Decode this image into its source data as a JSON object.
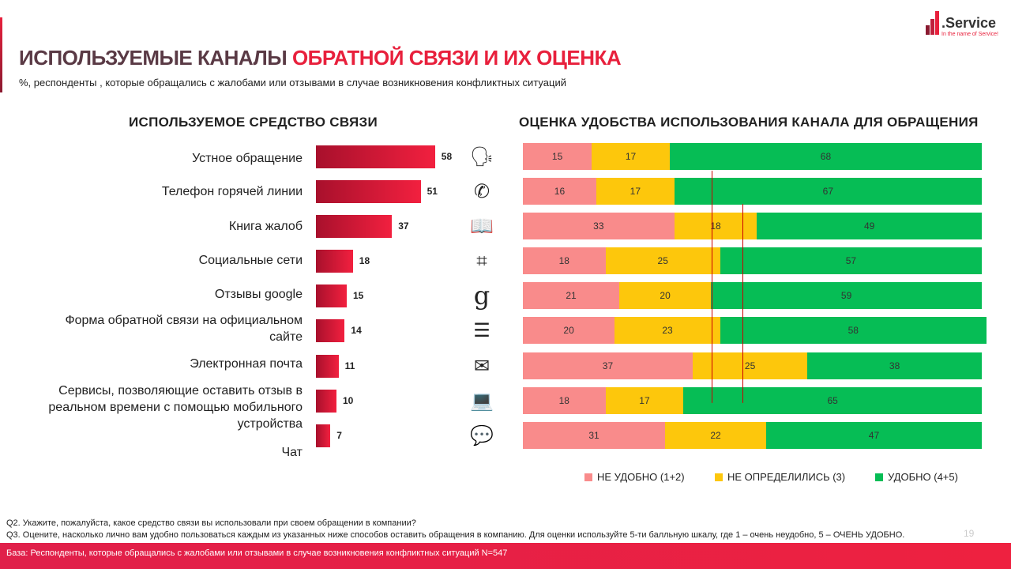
{
  "header": {
    "title_part1": "ИСПОЛЬЗУЕМЫЕ КАНАЛЫ ",
    "title_part2": "ОБРАТНОЙ СВЯЗИ И ИХ ОЦЕНКА",
    "subtitle": "%, респонденты , которые обращались с жалобами или отзывами в случае возникновения конфликтных ситуаций",
    "logo_text": ".Service",
    "logo_tagline": "In the name of Service!"
  },
  "chart_data": [
    {
      "type": "bar",
      "title": "ИСПОЛЬЗУЕМОЕ СРЕДСТВО СВЯЗИ",
      "categories": [
        "Устное обращение",
        "Телефон горячей линии",
        "Книга жалоб",
        "Социальные сети",
        "Отзывы google",
        "Форма обратной связи на официальном сайте",
        "Электронная почта",
        "Сервисы, позволяющие оставить отзыв в реальном времени с помощью мобильного устройства",
        "Чат"
      ],
      "values": [
        58,
        51,
        37,
        18,
        15,
        14,
        11,
        10,
        7
      ],
      "xlim": [
        0,
        100
      ]
    },
    {
      "type": "bar",
      "stacked": true,
      "title": "ОЦЕНКА УДОБСТВА ИСПОЛЬЗОВАНИЯ КАНАЛА ДЛЯ ОБРАЩЕНИЯ",
      "legend": "bottom",
      "series": [
        {
          "name": "НЕ УДОБНО (1+2)",
          "color": "#f98b8b",
          "values": [
            15,
            16,
            33,
            18,
            21,
            20,
            37,
            18,
            31
          ]
        },
        {
          "name": "НЕ ОПРЕДЕЛИЛИСЬ (3)",
          "color": "#fdc70c",
          "values": [
            17,
            17,
            18,
            25,
            20,
            23,
            25,
            17,
            22
          ]
        },
        {
          "name": "УДОБНО (4+5)",
          "color": "#06bd55",
          "values": [
            68,
            67,
            49,
            57,
            59,
            58,
            38,
            65,
            47
          ]
        }
      ]
    }
  ],
  "icons": [
    "speaking-head-icon",
    "phone-call-icon",
    "open-book-icon",
    "social-media-icon",
    "google-icon",
    "web-form-icon",
    "email-hand-icon",
    "laptop-feedback-icon",
    "mobile-chat-icon"
  ],
  "footer": {
    "q2": "Q2.  Укажите, пожалуйста, какое средство связи вы использовали при своем обращении в компании?",
    "q3": "Q3. Оцените,  насколько лично вам удобно пользоваться каждым из указанных ниже способов оставить обращения в компанию.  Для оценки  используйте 5-ти балльную шкалу, где 1 – очень неудобно,  5 – ОЧЕНЬ УДОБНО.",
    "base": "База: Респонденты, которые обращались с жалобами или отзывами в случае возникновения конфликтных ситуаций N=547",
    "page": "19"
  }
}
